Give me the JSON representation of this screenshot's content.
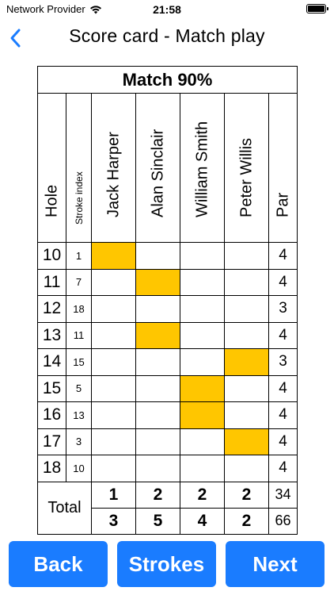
{
  "status_bar": {
    "carrier": "Network Provider",
    "time": "21:58"
  },
  "nav": {
    "title": "Score card - Match play"
  },
  "scorecard": {
    "caption": "Match 90%",
    "headers": {
      "hole": "Hole",
      "stroke_index": "Stroke index",
      "par": "Par"
    },
    "players": [
      "Jack Harper",
      "Alan Sinclair",
      "William Smith",
      "Peter Willis"
    ],
    "holes": [
      {
        "hole": "10",
        "si": "1",
        "par": "4",
        "stroke_player": 0
      },
      {
        "hole": "11",
        "si": "7",
        "par": "4",
        "stroke_player": 1
      },
      {
        "hole": "12",
        "si": "18",
        "par": "3",
        "stroke_player": null
      },
      {
        "hole": "13",
        "si": "11",
        "par": "4",
        "stroke_player": 1
      },
      {
        "hole": "14",
        "si": "15",
        "par": "3",
        "stroke_player": 3
      },
      {
        "hole": "15",
        "si": "5",
        "par": "4",
        "stroke_player": 2
      },
      {
        "hole": "16",
        "si": "13",
        "par": "4",
        "stroke_player": 2
      },
      {
        "hole": "17",
        "si": "3",
        "par": "4",
        "stroke_player": 3
      },
      {
        "hole": "18",
        "si": "10",
        "par": "4",
        "stroke_player": null
      }
    ],
    "total_label": "Total",
    "totals_row1": [
      "1",
      "2",
      "2",
      "2"
    ],
    "totals_row2": [
      "3",
      "5",
      "4",
      "2"
    ],
    "par_total1": "34",
    "par_total2": "66",
    "highlight_color": "#ffc600"
  },
  "buttons": {
    "back": "Back",
    "strokes": "Strokes",
    "next": "Next"
  }
}
